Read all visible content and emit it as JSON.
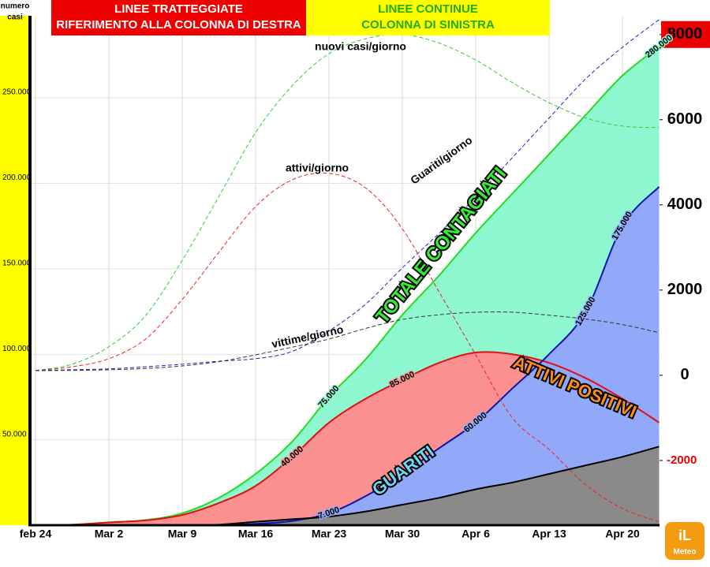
{
  "chart_data": {
    "type": "line",
    "ylabel": [
      "numero",
      "casi"
    ],
    "notes": [
      {
        "lines": [
          "LINEE TRATTEGGIATE",
          "RIFERIMENTO ALLA COLONNA DI DESTRA"
        ],
        "color": "#ee0000",
        "text_color": "#ffffff"
      },
      {
        "lines": [
          "LINEE CONTINUE",
          "COLONNA DI SINISTRA"
        ],
        "color": "#ffff00",
        "text_color": "#22aa00"
      }
    ],
    "categories": [
      "feb 24",
      null,
      "Mar 2",
      null,
      "Mar 9",
      null,
      "Mar 16",
      null,
      "Mar 23",
      null,
      "Mar 30",
      null,
      "Apr 6",
      null,
      "Apr 13",
      null,
      "Apr 20",
      null
    ],
    "ylim": [
      0,
      298000
    ],
    "yticks": [
      {
        "value": 50000,
        "label": "50.000"
      },
      {
        "value": 100000,
        "label": "100.000"
      },
      {
        "value": 150000,
        "label": "150.000"
      },
      {
        "value": 200000,
        "label": "200.000"
      },
      {
        "value": 250000,
        "label": "250.000"
      }
    ],
    "y2lim": [
      -3520,
      8440
    ],
    "y2ticks": [
      -2000,
      0,
      2000,
      4000,
      6000,
      8000
    ],
    "grid": true,
    "series": [
      {
        "name": "TOTALE CONTAGIATI",
        "color": "#22dd22",
        "fill": "#8ef7cf",
        "area": true,
        "values": [
          0,
          300,
          1700,
          3000,
          7000,
          16000,
          30000,
          49000,
          75000,
          97000,
          123000,
          146000,
          171000,
          194000,
          217000,
          240000,
          263000,
          280000
        ],
        "value_labels": [
          null,
          null,
          null,
          null,
          null,
          null,
          null,
          null,
          "75.000",
          null,
          null,
          null,
          null,
          null,
          null,
          null,
          null,
          "280.000"
        ]
      },
      {
        "name": "ATTIVI POSITIVI",
        "color": "#dd1111",
        "fill": "#fa9090",
        "area": true,
        "values": [
          0,
          300,
          1600,
          2800,
          6000,
          13000,
          23000,
          40000,
          60000,
          74000,
          85000,
          95000,
          101000,
          100000,
          95000,
          86000,
          74000,
          60000
        ],
        "value_labels": [
          null,
          null,
          null,
          null,
          null,
          null,
          null,
          "40.000",
          null,
          null,
          "85.000",
          null,
          null,
          null,
          null,
          null,
          null,
          null
        ]
      },
      {
        "name": "GUARITI",
        "color": "#0a14b4",
        "fill": "#92a8f8",
        "area": true,
        "values": [
          0,
          0,
          0,
          0,
          0,
          200,
          800,
          2500,
          7000,
          17000,
          30000,
          45000,
          60000,
          80000,
          100000,
          125000,
          175000,
          198000
        ],
        "value_labels": [
          null,
          null,
          null,
          null,
          null,
          null,
          null,
          null,
          "7.000",
          null,
          null,
          null,
          "60.000",
          null,
          null,
          "125.000",
          "175.000",
          null
        ]
      },
      {
        "color": "#000000",
        "fill": "#8a8a8a",
        "area": true,
        "values": [
          0,
          0,
          0,
          0,
          0,
          300,
          2000,
          3500,
          5000,
          8000,
          12000,
          16000,
          21000,
          25000,
          30000,
          35000,
          40000,
          46000
        ]
      },
      {
        "name": "nuovi casi/giorno",
        "color": "#33cc33",
        "axis": "y2",
        "dashed": true,
        "values": [
          110,
          260,
          670,
          1400,
          2700,
          4200,
          5700,
          6800,
          7550,
          7900,
          8000,
          7800,
          7400,
          6870,
          6400,
          6040,
          5850,
          5815
        ]
      },
      {
        "name": "attivi/giorno",
        "color": "#ee2222",
        "axis": "y2",
        "dashed": true,
        "values": [
          110,
          200,
          390,
          850,
          1780,
          2890,
          3960,
          4590,
          4740,
          4400,
          3440,
          1960,
          480,
          -1000,
          -1740,
          -2570,
          -3130,
          -3440
        ]
      },
      {
        "name": "Guariti/giorno",
        "color": "#2222cc",
        "axis": "y2",
        "dashed": true,
        "values": [
          110,
          130,
          150,
          200,
          260,
          330,
          390,
          560,
          1040,
          1670,
          2520,
          3330,
          4180,
          5110,
          6040,
          6960,
          7700,
          8350
        ]
      },
      {
        "name": "vittime/giorno",
        "color": "#333333",
        "axis": "y2",
        "dashed": true,
        "values": [
          110,
          115,
          130,
          160,
          220,
          320,
          480,
          660,
          850,
          1100,
          1310,
          1420,
          1480,
          1480,
          1410,
          1320,
          1190,
          1000
        ]
      }
    ]
  }
}
